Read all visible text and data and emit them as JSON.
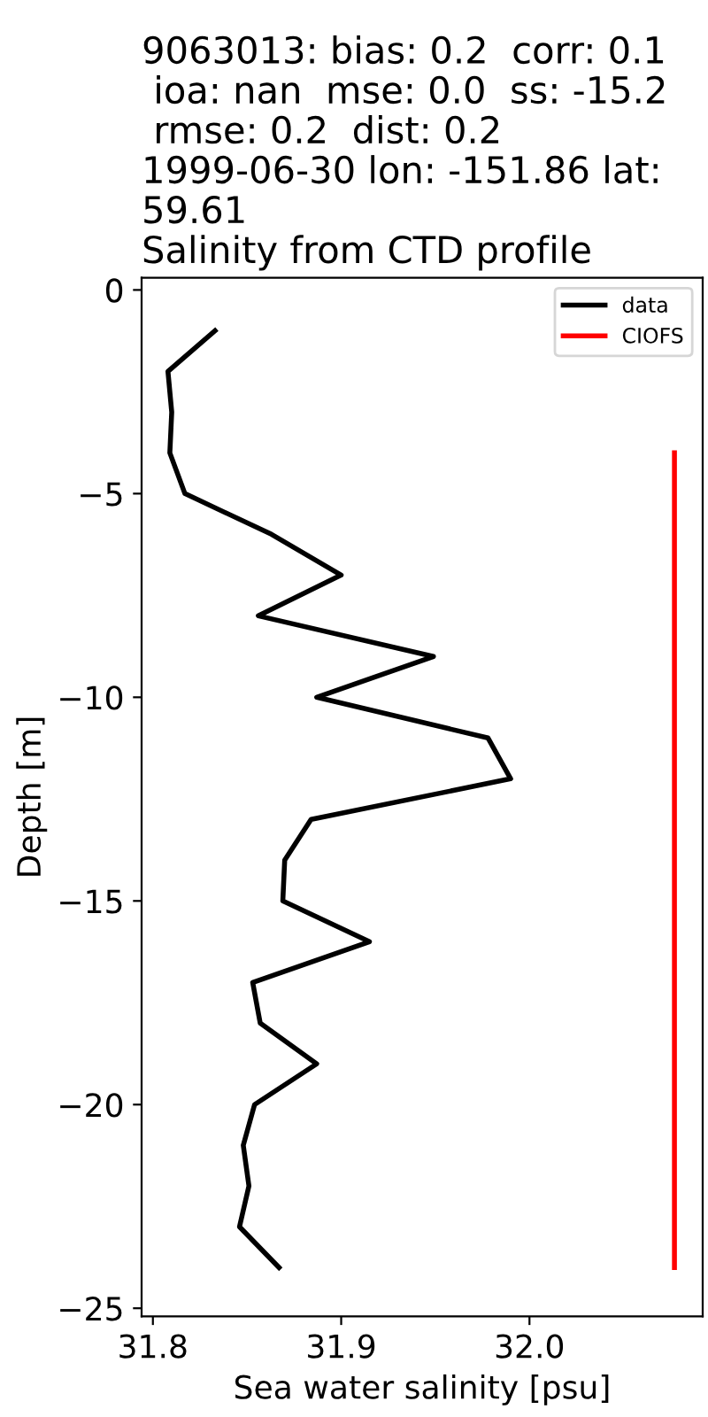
{
  "chart_data": {
    "type": "line",
    "title": "9063013: bias: 0.2  corr: 0.1\n ioa: nan  mse: 0.0  ss: -15.2\n rmse: 0.2  dist: 0.2\n1999-06-30 lon: -151.86 lat:\n59.61\nSalinity from CTD profile",
    "xlabel": "Sea water salinity [psu]",
    "ylabel": "Depth [m]",
    "series": [
      {
        "name": "data",
        "color": "#000000",
        "x": [
          31.833,
          31.808,
          31.81,
          31.809,
          31.817,
          31.863,
          31.9,
          31.856,
          31.949,
          31.887,
          31.978,
          31.99,
          31.884,
          31.87,
          31.869,
          31.915,
          31.853,
          31.857,
          31.887,
          31.854,
          31.848,
          31.851,
          31.846,
          31.867
        ],
        "values": [
          -1,
          -2,
          -3,
          -4,
          -5,
          -6,
          -7,
          -8,
          -9,
          -10,
          -11,
          -12,
          -13,
          -14,
          -15,
          -16,
          -17,
          -18,
          -19,
          -20,
          -21,
          -22,
          -23,
          -24
        ]
      },
      {
        "name": "CIOFS",
        "color": "#ff0000",
        "x": [
          32.077,
          32.077
        ],
        "values": [
          -4,
          -24
        ]
      }
    ],
    "xlim": [
      31.794,
      32.092
    ],
    "xticks": [
      31.8,
      31.9,
      {
        "value": 32.0,
        "label": "32.0"
      }
    ],
    "ylim": [
      -25.2,
      0.3
    ],
    "yticks": [
      {
        "value": 0,
        "label": "0"
      },
      {
        "value": -5,
        "label": "−5"
      },
      {
        "value": -10,
        "label": "−10"
      },
      {
        "value": -15,
        "label": "−15"
      },
      {
        "value": -20,
        "label": "−20"
      },
      {
        "value": -25,
        "label": "−25"
      }
    ],
    "legend": "top right",
    "grid": false
  }
}
